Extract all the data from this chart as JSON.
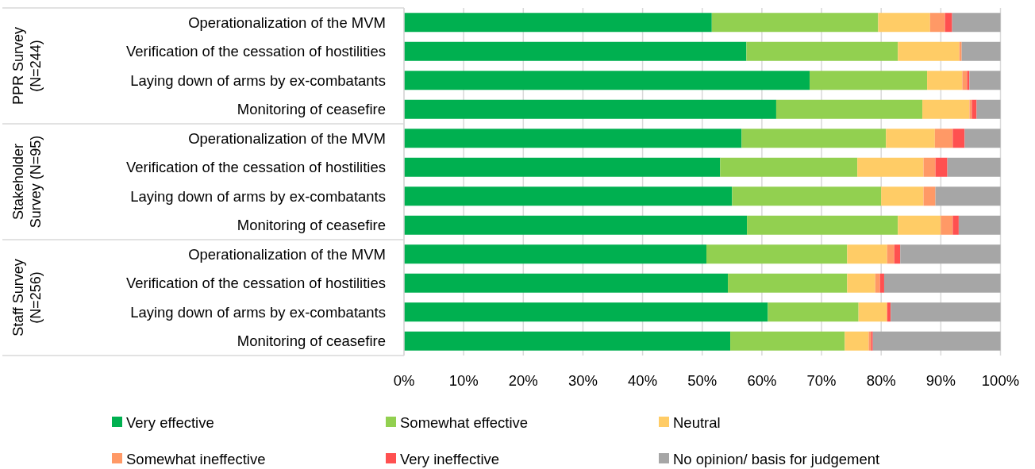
{
  "chart_data": {
    "type": "bar",
    "orientation": "horizontal",
    "stacked": true,
    "categories": [
      "Operationalization of the MVM",
      "Verification of the cessation of hostilities",
      "Laying down of arms by ex-combatants",
      "Monitoring of ceasefire",
      "Operationalization of the MVM",
      "Verification of the cessation of hostilities",
      "Laying down of arms by ex-combatants",
      "Monitoring of ceasefire",
      "Operationalization of the MVM",
      "Verification of the cessation of hostilities",
      "Laying down of arms by ex-combatants",
      "Monitoring of ceasefire"
    ],
    "series": [
      {
        "name": "Very effective",
        "color": "#00b050",
        "values": [
          51.6,
          57.4,
          68.0,
          62.4,
          56.6,
          53.0,
          55.0,
          57.5,
          50.7,
          54.3,
          61.0,
          54.7
        ]
      },
      {
        "name": "Somewhat effective",
        "color": "#92d050",
        "values": [
          27.9,
          25.4,
          19.7,
          24.5,
          24.2,
          23.0,
          25.0,
          25.3,
          23.6,
          20.0,
          15.2,
          19.2
        ]
      },
      {
        "name": "Neutral",
        "color": "#ffcc66",
        "values": [
          8.7,
          10.3,
          5.9,
          7.9,
          8.2,
          11.1,
          7.1,
          7.2,
          6.7,
          4.7,
          4.8,
          4.0
        ]
      },
      {
        "name": "Somewhat ineffective",
        "color": "#ff9966",
        "values": [
          2.5,
          0.4,
          0.8,
          0.4,
          3.0,
          2.0,
          2.0,
          2.0,
          1.2,
          0.8,
          0,
          0.4
        ]
      },
      {
        "name": "Very ineffective",
        "color": "#ff5050",
        "values": [
          1.2,
          0,
          0.4,
          0.8,
          2.0,
          2.0,
          0,
          1.0,
          1.0,
          0.7,
          0.6,
          0.3
        ]
      },
      {
        "name": "No opinion/ basis for judgement",
        "color": "#a6a6a6",
        "values": [
          8.1,
          6.5,
          5.2,
          4.0,
          6.0,
          8.9,
          10.9,
          7.0,
          16.8,
          19.5,
          18.4,
          21.4
        ]
      }
    ],
    "annotations": [
      "PPR Survey\n(N=244)",
      "Stakeholder\nSurvey (N=95)",
      "Staff Survey\n(N=256)"
    ],
    "xlim": [
      0,
      100
    ],
    "xticks": [
      {
        "value": 0,
        "label": "0%"
      },
      {
        "value": 10,
        "label": "10%"
      },
      {
        "value": 20,
        "label": "20%"
      },
      {
        "value": 30,
        "label": "30%"
      },
      {
        "value": 40,
        "label": "40%"
      },
      {
        "value": 50,
        "label": "50%"
      },
      {
        "value": 60,
        "label": "60%"
      },
      {
        "value": 70,
        "label": "70%"
      },
      {
        "value": 80,
        "label": "80%"
      },
      {
        "value": 90,
        "label": "90%"
      },
      {
        "value": 100,
        "label": "100%"
      }
    ],
    "grid": "x",
    "legend": "bottom"
  }
}
